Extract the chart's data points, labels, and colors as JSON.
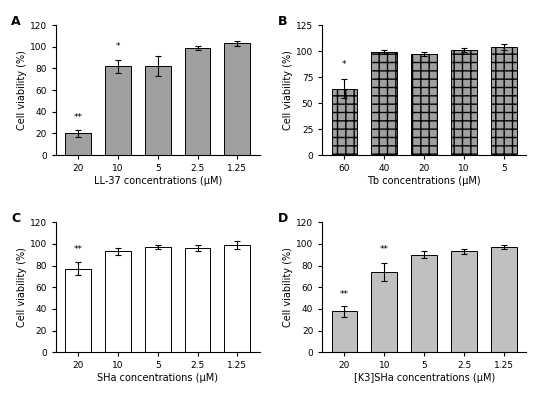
{
  "A": {
    "label": "A",
    "values": [
      20,
      82,
      82,
      99,
      103
    ],
    "errors": [
      3,
      6,
      9,
      2,
      2
    ],
    "categories": [
      "20",
      "10",
      "5",
      "2.5",
      "1.25"
    ],
    "xlabel": "LL-37 concentrations (μM)",
    "ylabel": "Cell viability (%)",
    "ylim": [
      0,
      120
    ],
    "yticks": [
      0,
      20,
      40,
      60,
      80,
      100,
      120
    ],
    "color": "#a0a0a0",
    "hatch": "",
    "significance": [
      "**",
      "*",
      "",
      "",
      ""
    ],
    "sig_offset": [
      8,
      8,
      0,
      0,
      0
    ]
  },
  "B": {
    "label": "B",
    "values": [
      64,
      99,
      97,
      101,
      104
    ],
    "errors": [
      9,
      2,
      2,
      2,
      3
    ],
    "categories": [
      "60",
      "40",
      "20",
      "10",
      "5"
    ],
    "xlabel": "Tb concentrations (μM)",
    "ylabel": "Cell viability (%)",
    "ylim": [
      0,
      125
    ],
    "yticks": [
      0,
      25,
      50,
      75,
      100,
      125
    ],
    "color": "#a0a0a0",
    "hatch": "++",
    "significance": [
      "*",
      "",
      "",
      "",
      ""
    ],
    "sig_offset": [
      10,
      0,
      0,
      0,
      0
    ]
  },
  "C": {
    "label": "C",
    "values": [
      77,
      93,
      97,
      96,
      99
    ],
    "errors": [
      6,
      3,
      2,
      3,
      4
    ],
    "categories": [
      "20",
      "10",
      "5",
      "2.5",
      "1.25"
    ],
    "xlabel": "SHa concentrations (μM)",
    "ylabel": "Cell viability (%)",
    "ylim": [
      0,
      120
    ],
    "yticks": [
      0,
      20,
      40,
      60,
      80,
      100,
      120
    ],
    "color": "#ffffff",
    "hatch": "",
    "significance": [
      "**",
      "",
      "",
      "",
      ""
    ],
    "sig_offset": [
      8,
      0,
      0,
      0,
      0
    ]
  },
  "D": {
    "label": "D",
    "values": [
      38,
      74,
      90,
      93,
      97
    ],
    "errors": [
      5,
      8,
      3,
      2,
      2
    ],
    "categories": [
      "20",
      "10",
      "5",
      "2.5",
      "1.25"
    ],
    "xlabel": "[K3]SHa concentrations (μM)",
    "ylabel": "Cell viability (%)",
    "ylim": [
      0,
      120
    ],
    "yticks": [
      0,
      20,
      40,
      60,
      80,
      100,
      120
    ],
    "color": "#c0c0c0",
    "hatch": "",
    "significance": [
      "**",
      "**",
      "",
      "",
      ""
    ],
    "sig_offset": [
      6,
      9,
      0,
      0,
      0
    ]
  }
}
